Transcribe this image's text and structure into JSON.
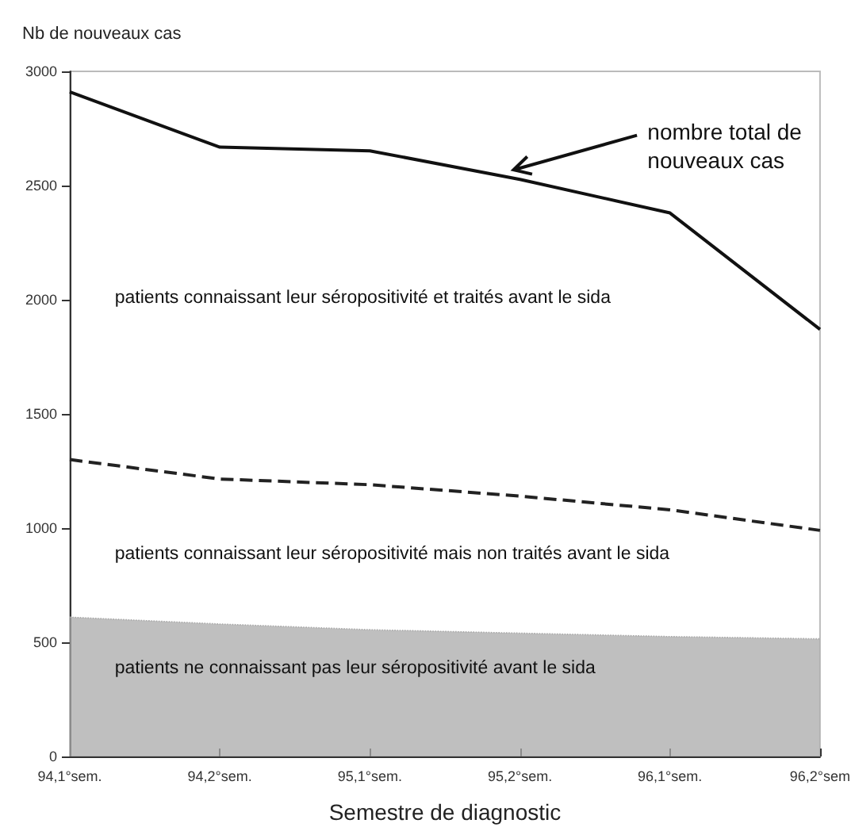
{
  "chart_data": {
    "type": "line",
    "ylabel": "Nb de nouveaux cas",
    "xlabel": "Semestre de diagnostic",
    "categories": [
      "94,1°sem.",
      "94,2°sem.",
      "95,1°sem.",
      "95,2°sem.",
      "96,1°sem.",
      "96,2°sem"
    ],
    "series": [
      {
        "type": "area",
        "color": "#a9a9a9",
        "values": [
          610,
          580,
          555,
          540,
          525,
          515
        ]
      },
      {
        "color": "#222222",
        "line_style": "dashed",
        "values": [
          1300,
          1215,
          1190,
          1140,
          1080,
          990
        ]
      },
      {
        "color": "#111111",
        "line_style": "solid",
        "values": [
          2910,
          2668,
          2652,
          2527,
          2380,
          1870
        ]
      }
    ],
    "ylim": [
      0,
      3000
    ],
    "yticks": [
      0,
      500,
      1000,
      1500,
      2000,
      2500,
      3000
    ],
    "grid": false,
    "marker": "none",
    "annotations": [
      {
        "text": "nombre total de nouveaux cas",
        "x": "95,2°sem.",
        "y": 2527
      },
      "patients connaissant leur séropositivité et traités avant le sida",
      "patients connaissant leur séropositivité mais non traités avant le sida",
      "patients ne connaissant pas leur séropositivité avant le sida"
    ]
  }
}
